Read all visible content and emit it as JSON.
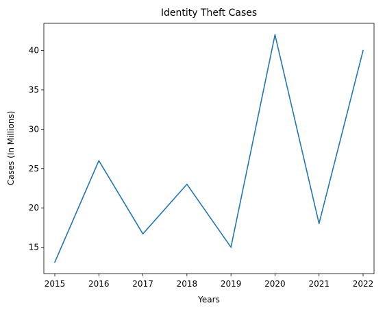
{
  "chart_data": {
    "type": "line",
    "title": "Identity Theft Cases",
    "xlabel": "Years",
    "ylabel": "Cases (In Millions)",
    "x": [
      "2015",
      "2016",
      "2017",
      "2018",
      "2019",
      "2020",
      "2021",
      "2022"
    ],
    "series": [
      {
        "values": [
          13.1,
          26.0,
          16.7,
          23.0,
          15.0,
          42.0,
          18.0,
          40.0
        ],
        "color": "#1f77b4"
      }
    ],
    "xticks": [
      "2015",
      "2016",
      "2017",
      "2018",
      "2019",
      "2020",
      "2021",
      "2022"
    ],
    "yticks": [
      15,
      20,
      25,
      30,
      35,
      40
    ],
    "ylim": [
      11.65,
      43.45
    ],
    "grid": false,
    "legend": "none"
  }
}
